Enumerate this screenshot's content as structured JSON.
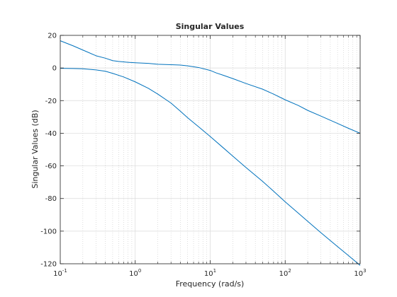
{
  "chart_data": {
    "type": "line",
    "title": "Singular Values",
    "xlabel": "Frequency (rad/s)",
    "ylabel": "Singular Values (dB)",
    "x_scale": "log",
    "xlim": [
      0.1,
      1000
    ],
    "ylim": [
      -120,
      20
    ],
    "x_ticks": [
      {
        "value": 0.1,
        "base": "10",
        "exp": "-1"
      },
      {
        "value": 1,
        "base": "10",
        "exp": "0"
      },
      {
        "value": 10,
        "base": "10",
        "exp": "1"
      },
      {
        "value": 100,
        "base": "10",
        "exp": "2"
      },
      {
        "value": 1000,
        "base": "10",
        "exp": "3"
      }
    ],
    "y_ticks": [
      20,
      0,
      -20,
      -40,
      -60,
      -80,
      -100,
      -120
    ],
    "grid": true,
    "minor_grid_x": true,
    "line_color": "#0072bd",
    "series": [
      {
        "x": [
          0.1,
          0.15,
          0.2,
          0.3,
          0.4,
          0.5,
          0.6,
          0.8,
          1,
          1.5,
          2,
          3,
          4,
          5,
          7,
          10,
          12,
          15,
          20,
          30,
          50,
          70,
          100,
          150,
          200,
          300,
          500,
          700,
          1000
        ],
        "y": [
          16.7,
          13.5,
          11,
          7.5,
          6,
          4.5,
          4,
          3.5,
          3.2,
          2.8,
          2.3,
          2,
          1.8,
          1.3,
          0.3,
          -1.5,
          -3,
          -4.5,
          -6.5,
          -9.5,
          -13,
          -16,
          -19.5,
          -23,
          -26,
          -29.5,
          -34,
          -37,
          -40
        ]
      },
      {
        "x": [
          0.1,
          0.15,
          0.2,
          0.3,
          0.4,
          0.5,
          0.7,
          1,
          1.5,
          2,
          3,
          4,
          5,
          7,
          10,
          15,
          20,
          30,
          50,
          70,
          100,
          150,
          200,
          300,
          500,
          700,
          1000
        ],
        "y": [
          -0.2,
          -0.3,
          -0.5,
          -1.2,
          -2,
          -3.3,
          -5.5,
          -8.5,
          -12.5,
          -16,
          -21.5,
          -26.5,
          -30.5,
          -36,
          -42,
          -49,
          -54,
          -61,
          -69.5,
          -75.5,
          -82,
          -89,
          -94,
          -101,
          -109.5,
          -115,
          -121
        ]
      }
    ]
  }
}
